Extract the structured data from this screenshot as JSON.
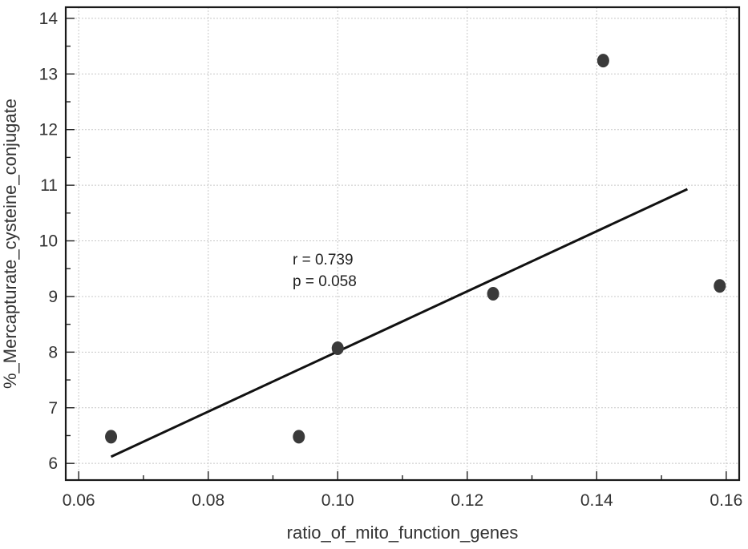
{
  "chart_data": {
    "type": "scatter",
    "title": "",
    "xlabel": "ratio_of_mito_function_genes",
    "ylabel": "%_Mercapturate_cysteine_conjugate",
    "xlim": [
      0.058,
      0.162
    ],
    "ylim": [
      5.7,
      14.2
    ],
    "x_ticks": [
      0.06,
      0.08,
      0.1,
      0.12,
      0.14,
      0.16
    ],
    "x_tick_labels": [
      "0.06",
      "0.08",
      "0.10",
      "0.12",
      "0.14",
      "0.16"
    ],
    "y_ticks": [
      6,
      7,
      8,
      9,
      10,
      11,
      12,
      13,
      14
    ],
    "y_tick_labels": [
      "6",
      "7",
      "8",
      "9",
      "10",
      "11",
      "12",
      "13",
      "14"
    ],
    "grid": true,
    "series": [
      {
        "points": [
          {
            "x": 0.065,
            "y": 6.48
          },
          {
            "x": 0.094,
            "y": 6.48
          },
          {
            "x": 0.1,
            "y": 8.07
          },
          {
            "x": 0.124,
            "y": 9.05
          },
          {
            "x": 0.141,
            "y": 13.24
          },
          {
            "x": 0.159,
            "y": 9.19
          }
        ],
        "color": "#3a3a3a"
      }
    ],
    "trendline": {
      "x": [
        0.065,
        0.154
      ],
      "y": [
        6.12,
        10.93
      ],
      "color": "#111111"
    },
    "annotations": [
      "r = 0.739",
      "p = 0.058"
    ]
  }
}
